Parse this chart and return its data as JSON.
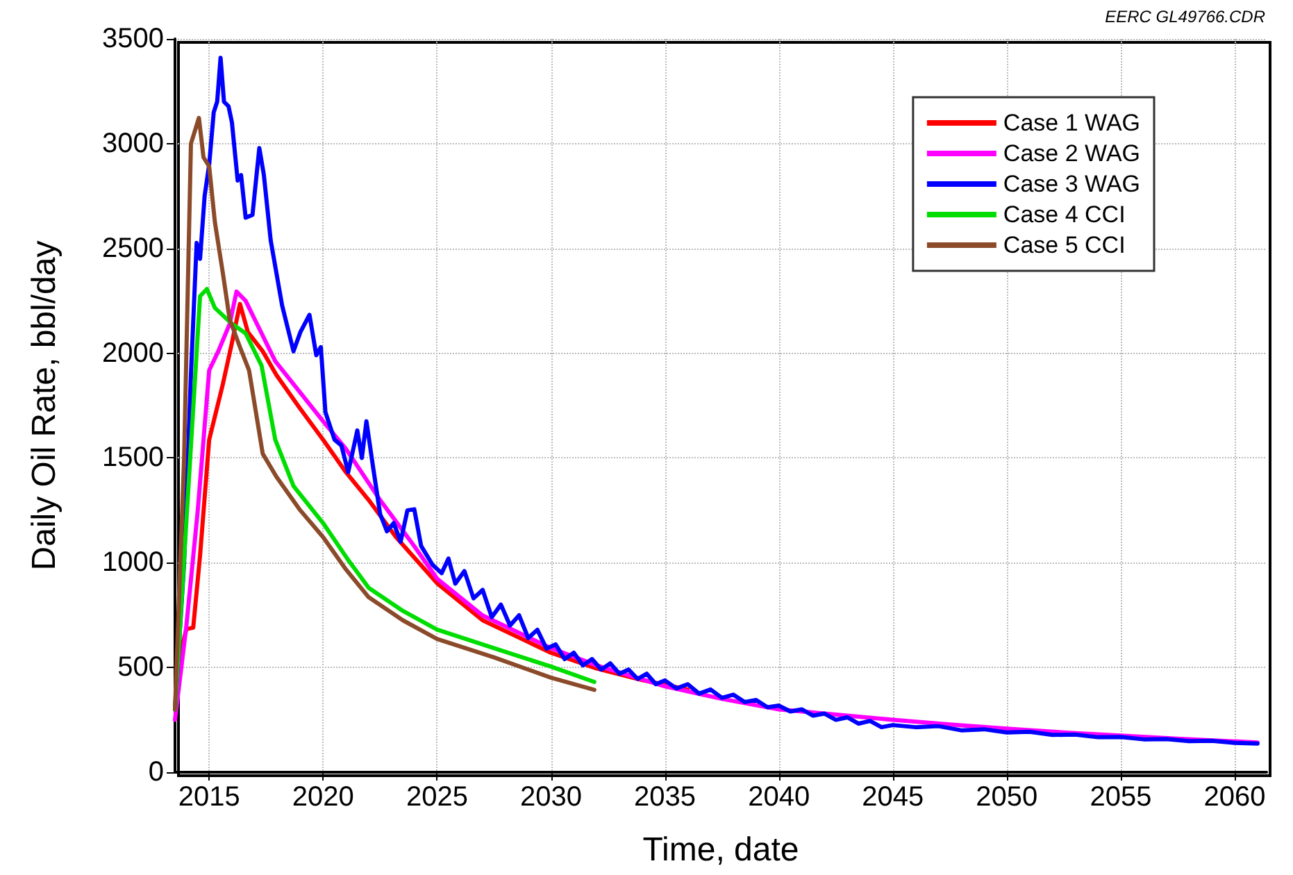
{
  "chart_data": {
    "type": "line",
    "xlabel": "Time, date",
    "ylabel": "Daily Oil Rate, bbl/day",
    "annotations": [
      "EERC GL49766.CDR"
    ],
    "xlim": [
      2013.5,
      2061.4
    ],
    "xticks": [
      2015,
      2020,
      2025,
      2030,
      2035,
      2040,
      2045,
      2050,
      2055,
      2060
    ],
    "ylim": [
      0,
      3500
    ],
    "yticks": [
      0,
      500,
      1000,
      1500,
      2000,
      2500,
      3000,
      3500
    ],
    "grid": true,
    "legend": "top right",
    "marker": "none",
    "line_style": "solid",
    "series": [
      {
        "name": "Case 1 WAG",
        "color": "#ff0000",
        "x": [
          2013.5,
          2013.8,
          2014.0,
          2014.3,
          2014.6,
          2015.0,
          2015.6,
          2016.0,
          2016.35,
          2016.7,
          2017.35,
          2017.95,
          2018.96,
          2020,
          2021,
          2022,
          2023.2,
          2025,
          2027,
          2030,
          2032,
          2034,
          2036
        ],
        "values": [
          300,
          600,
          683,
          690,
          1034,
          1587,
          1852,
          2050,
          2235,
          2100,
          2009,
          1896,
          1740,
          1587,
          1432,
          1299,
          1122,
          902,
          725,
          570,
          495,
          440,
          395
        ]
      },
      {
        "name": "Case 2 WAG",
        "color": "#ff00ff",
        "x": [
          2013.5,
          2014,
          2014.5,
          2015.0,
          2015.4,
          2015.9,
          2016.2,
          2016.6,
          2017.0,
          2017.9,
          2018.7,
          2020,
          2021,
          2022.5,
          2024,
          2025,
          2027,
          2030,
          2032,
          2035,
          2037.5,
          2040,
          2042.5,
          2045,
          2047.5,
          2050,
          2052.5,
          2055,
          2057.5,
          2061
        ],
        "values": [
          250,
          700,
          1250,
          1918,
          2009,
          2140,
          2294,
          2250,
          2161,
          1962,
          1852,
          1675,
          1543,
          1299,
          1079,
          924,
          748,
          592,
          510,
          410,
          350,
          300,
          275,
          250,
          228,
          208,
          190,
          175,
          160,
          142
        ]
      },
      {
        "name": "Case 3 WAG",
        "color": "#0000ff",
        "x": [
          2013.5,
          2013.9,
          2014.2,
          2014.45,
          2014.6,
          2014.8,
          2015.0,
          2015.2,
          2015.35,
          2015.5,
          2015.65,
          2015.85,
          2016.0,
          2016.25,
          2016.4,
          2016.6,
          2016.9,
          2017.2,
          2017.4,
          2017.7,
          2018.2,
          2018.7,
          2019.0,
          2019.4,
          2019.7,
          2019.9,
          2020.1,
          2020.5,
          2020.8,
          2021.1,
          2021.5,
          2021.7,
          2021.9,
          2022.2,
          2022.5,
          2022.8,
          2023.1,
          2023.4,
          2023.7,
          2024.0,
          2024.3,
          2024.8,
          2025.2,
          2025.5,
          2025.8,
          2026.2,
          2026.6,
          2027.0,
          2027.4,
          2027.8,
          2028.2,
          2028.6,
          2029.0,
          2029.4,
          2029.8,
          2030.2,
          2030.6,
          2031.0,
          2031.4,
          2031.8,
          2032.2,
          2032.6,
          2033.0,
          2033.4,
          2033.8,
          2034.2,
          2034.6,
          2035.0,
          2035.5,
          2036.0,
          2036.5,
          2037.0,
          2037.5,
          2038.0,
          2038.5,
          2039.0,
          2039.5,
          2040.0,
          2040.5,
          2041.0,
          2041.5,
          2042.0,
          2042.5,
          2043.0,
          2043.5,
          2044.0,
          2044.5,
          2045.0,
          2046,
          2047,
          2048,
          2049,
          2050,
          2051,
          2052,
          2053,
          2054,
          2055,
          2056,
          2057,
          2058,
          2059,
          2060,
          2061
        ],
        "values": [
          300,
          1000,
          1900,
          2526,
          2450,
          2750,
          2900,
          3150,
          3200,
          3410,
          3200,
          3178,
          3100,
          2824,
          2850,
          2647,
          2660,
          2979,
          2850,
          2538,
          2228,
          2009,
          2100,
          2183,
          1990,
          2029,
          1719,
          1587,
          1560,
          1432,
          1631,
          1500,
          1675,
          1450,
          1233,
          1150,
          1189,
          1100,
          1250,
          1255,
          1080,
          990,
          950,
          1020,
          900,
          960,
          830,
          870,
          740,
          800,
          700,
          749,
          640,
          680,
          590,
          610,
          540,
          570,
          510,
          540,
          490,
          520,
          470,
          490,
          445,
          470,
          420,
          438,
          400,
          420,
          375,
          395,
          355,
          370,
          335,
          345,
          310,
          318,
          290,
          300,
          270,
          280,
          250,
          262,
          232,
          245,
          215,
          225,
          215,
          220,
          200,
          205,
          190,
          193,
          178,
          180,
          167,
          168,
          157,
          158,
          148,
          150,
          140,
          137
        ]
      },
      {
        "name": "Case 4 CCI",
        "color": "#00dd00",
        "x": [
          2013.5,
          2014,
          2014.6,
          2014.9,
          2015.25,
          2016,
          2016.6,
          2017.3,
          2017.9,
          2018.7,
          2020,
          2021.1,
          2022,
          2023.5,
          2025,
          2027.5,
          2030,
          2031.9
        ],
        "values": [
          300,
          1200,
          2272,
          2306,
          2216,
          2140,
          2095,
          1940,
          1587,
          1366,
          1189,
          1013,
          880,
          770,
          681,
          592,
          504,
          431
        ]
      },
      {
        "name": "Case 5 CCI",
        "color": "#8b4b2b",
        "x": [
          2013.5,
          2013.9,
          2014.2,
          2014.55,
          2014.75,
          2015.0,
          2015.25,
          2015.6,
          2015.9,
          2016.35,
          2016.75,
          2017.35,
          2017.95,
          2018.96,
          2020,
          2021,
          2022,
          2023.5,
          2025,
          2027.5,
          2030,
          2031.9
        ],
        "values": [
          300,
          1500,
          3000,
          3123,
          2935,
          2891,
          2626,
          2382,
          2161,
          2029,
          1918,
          1520,
          1410,
          1255,
          1122,
          968,
          835,
          725,
          636,
          548,
          451,
          393
        ]
      }
    ]
  }
}
